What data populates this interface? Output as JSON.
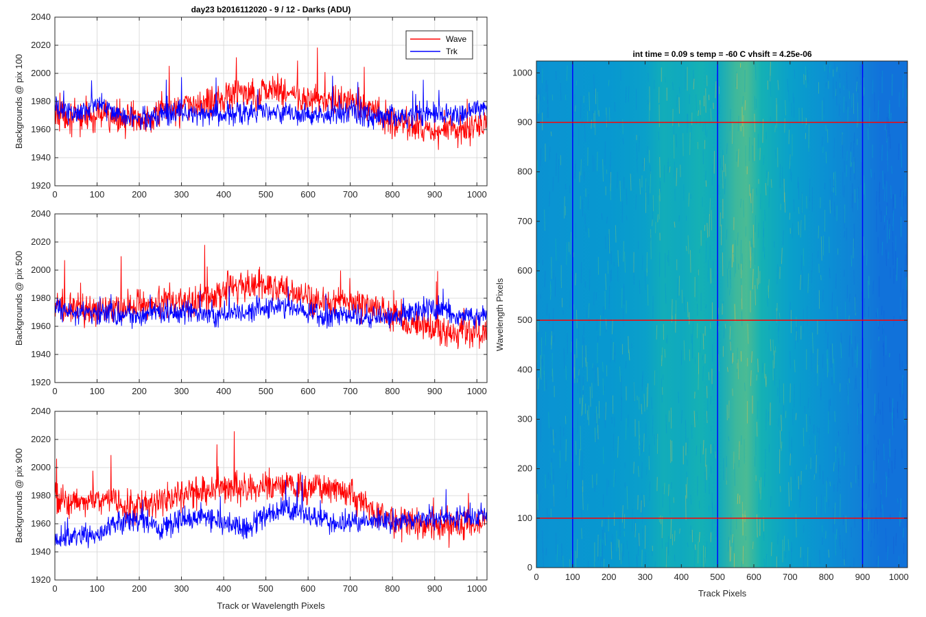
{
  "figure_title": "day23 b2016112020 - 9 / 12 - Darks (ADU)",
  "colors": {
    "wave": "#ff0000",
    "trk": "#0000ff",
    "grid": "#dcdcdc",
    "axis": "#262626"
  },
  "chart_data": [
    {
      "type": "line",
      "title": "day23 b2016112020 - 9 / 12 - Darks (ADU)",
      "xlabel": "",
      "ylabel": "Backgrounds @ pix 100",
      "xlim": [
        0,
        1024
      ],
      "ylim": [
        1920,
        2040
      ],
      "xticks": [
        0,
        100,
        200,
        300,
        400,
        500,
        600,
        700,
        800,
        900,
        1000
      ],
      "yticks": [
        1920,
        1940,
        1960,
        1980,
        2000,
        2020,
        2040
      ],
      "grid": true,
      "legend_position": "top-right",
      "x": [
        0,
        50,
        100,
        150,
        200,
        250,
        300,
        350,
        400,
        450,
        500,
        550,
        600,
        650,
        700,
        750,
        800,
        850,
        900,
        950,
        1024
      ],
      "series": [
        {
          "name": "Wave",
          "values": [
            1972,
            1968,
            1970,
            1968,
            1968,
            1972,
            1976,
            1978,
            1984,
            1986,
            1988,
            1986,
            1982,
            1980,
            1978,
            1974,
            1966,
            1962,
            1960,
            1958,
            1962
          ]
        },
        {
          "name": "Trk",
          "values": [
            1975,
            1972,
            1978,
            1972,
            1968,
            1970,
            1972,
            1972,
            1970,
            1972,
            1974,
            1972,
            1970,
            1972,
            1974,
            1970,
            1968,
            1970,
            1972,
            1970,
            1976
          ]
        }
      ]
    },
    {
      "type": "line",
      "title": "",
      "xlabel": "",
      "ylabel": "Backgrounds @ pix 500",
      "xlim": [
        0,
        1024
      ],
      "ylim": [
        1920,
        2040
      ],
      "xticks": [
        0,
        100,
        200,
        300,
        400,
        500,
        600,
        700,
        800,
        900,
        1000
      ],
      "yticks": [
        1920,
        1940,
        1960,
        1980,
        2000,
        2020,
        2040
      ],
      "grid": true,
      "x": [
        0,
        50,
        100,
        150,
        200,
        250,
        300,
        350,
        400,
        450,
        500,
        550,
        600,
        650,
        700,
        750,
        800,
        850,
        900,
        950,
        1024
      ],
      "series": [
        {
          "name": "Wave",
          "values": [
            1975,
            1972,
            1970,
            1972,
            1975,
            1976,
            1978,
            1980,
            1984,
            1988,
            1990,
            1986,
            1980,
            1978,
            1978,
            1974,
            1968,
            1962,
            1958,
            1955,
            1957
          ]
        },
        {
          "name": "Trk",
          "values": [
            1972,
            1970,
            1970,
            1968,
            1968,
            1970,
            1970,
            1968,
            1968,
            1970,
            1974,
            1974,
            1970,
            1968,
            1968,
            1966,
            1966,
            1970,
            1974,
            1966,
            1968
          ]
        }
      ]
    },
    {
      "type": "line",
      "title": "",
      "xlabel": "Track or Wavelength Pixels",
      "ylabel": "Backgrounds @ pix 900",
      "xlim": [
        0,
        1024
      ],
      "ylim": [
        1920,
        2040
      ],
      "xticks": [
        0,
        100,
        200,
        300,
        400,
        500,
        600,
        700,
        800,
        900,
        1000
      ],
      "yticks": [
        1920,
        1940,
        1960,
        1980,
        2000,
        2020,
        2040
      ],
      "grid": true,
      "x": [
        0,
        50,
        100,
        150,
        200,
        250,
        300,
        350,
        400,
        450,
        500,
        550,
        600,
        650,
        700,
        750,
        800,
        850,
        900,
        950,
        1024
      ],
      "series": [
        {
          "name": "Wave",
          "values": [
            1978,
            1976,
            1978,
            1974,
            1972,
            1976,
            1980,
            1984,
            1986,
            1984,
            1986,
            1988,
            1986,
            1984,
            1982,
            1970,
            1962,
            1960,
            1960,
            1958,
            1962
          ]
        },
        {
          "name": "Trk",
          "values": [
            1948,
            1952,
            1952,
            1962,
            1962,
            1958,
            1962,
            1966,
            1962,
            1955,
            1966,
            1970,
            1966,
            1962,
            1962,
            1962,
            1962,
            1962,
            1964,
            1964,
            1966
          ]
        }
      ]
    },
    {
      "type": "heatmap",
      "title": "int time = 0.09 s    temp = -60 C    vhsift = 4.25e-06",
      "xlabel": "Track Pixels",
      "ylabel": "Wavelength Pixels",
      "xlim": [
        0,
        1024
      ],
      "ylim": [
        0,
        1024
      ],
      "xticks": [
        0,
        100,
        200,
        300,
        400,
        500,
        600,
        700,
        800,
        900,
        1000
      ],
      "yticks": [
        0,
        100,
        200,
        300,
        400,
        500,
        600,
        700,
        800,
        900,
        1000
      ],
      "grid": false,
      "column_profile_x": [
        0,
        100,
        200,
        300,
        350,
        400,
        450,
        500,
        550,
        580,
        620,
        700,
        800,
        900,
        950,
        1024
      ],
      "column_profile_level": [
        0.45,
        0.47,
        0.48,
        0.52,
        0.58,
        0.56,
        0.6,
        0.56,
        0.66,
        0.68,
        0.6,
        0.52,
        0.44,
        0.36,
        0.3,
        0.3
      ],
      "vertical_markers": [
        100,
        500,
        900
      ],
      "horizontal_markers": [
        100,
        500,
        900
      ],
      "vertical_marker_color": "#0000ff",
      "horizontal_marker_color": "#ff0000"
    }
  ]
}
